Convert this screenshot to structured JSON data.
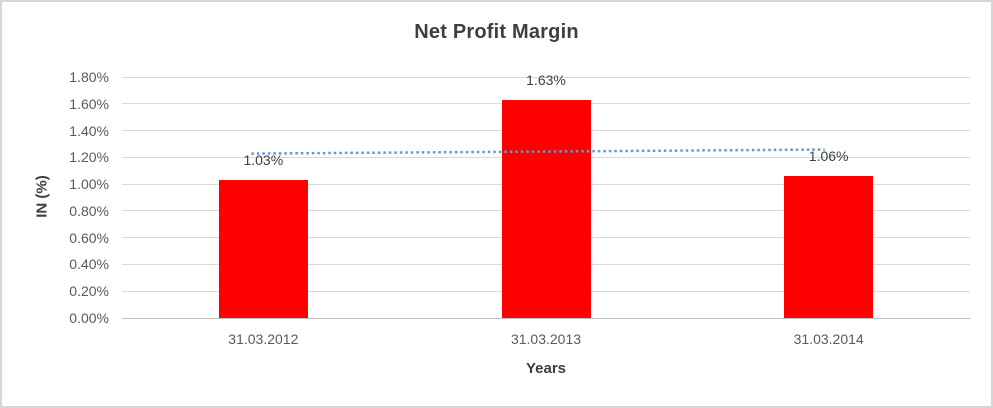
{
  "chart_data": {
    "type": "bar",
    "title": "Net Profit Margin",
    "xlabel": "Years",
    "ylabel": "IN (%)",
    "categories": [
      "31.03.2012",
      "31.03.2013",
      "31.03.2014"
    ],
    "values": [
      1.03,
      1.63,
      1.06
    ],
    "data_labels": [
      "1.03%",
      "1.63%",
      "1.06%"
    ],
    "ylim": [
      0,
      1.8
    ],
    "ytick_step": 0.2,
    "ytick_labels": [
      "0.00%",
      "0.20%",
      "0.40%",
      "0.60%",
      "0.80%",
      "1.00%",
      "1.20%",
      "1.40%",
      "1.60%",
      "1.80%"
    ],
    "grid": true,
    "legend": "none",
    "bar_color": "#FF0000",
    "trendline": {
      "type": "linear",
      "style": "dotted",
      "color": "#5B9BD5",
      "y_start": 1.228,
      "y_end": 1.258
    }
  }
}
